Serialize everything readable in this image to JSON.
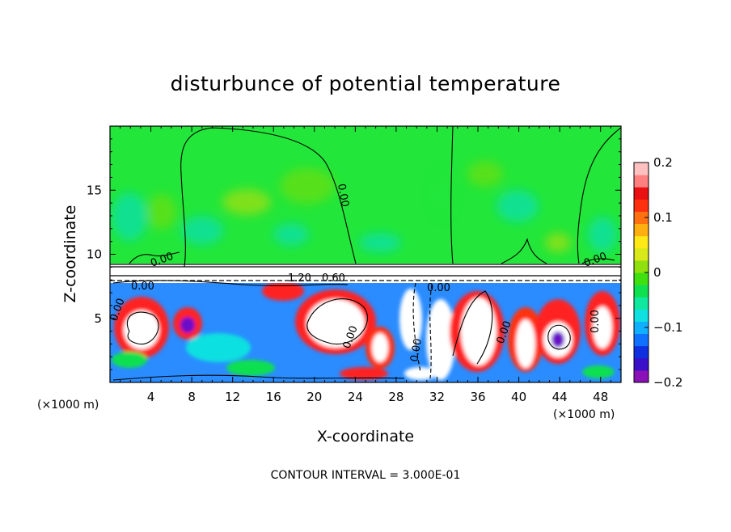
{
  "chart_data": {
    "type": "heatmap",
    "title": "disturbunce of potential temperature",
    "xlabel": "X-coordinate",
    "ylabel": "Z-coordinate",
    "x_unit_left": "(×1000 m)",
    "x_unit_right": "(×1000 m)",
    "footer": "CONTOUR INTERVAL = 3.000E-01",
    "xlim": [
      0,
      50
    ],
    "ylim": [
      0,
      20
    ],
    "x_ticks": [
      "4",
      "8",
      "12",
      "16",
      "20",
      "24",
      "28",
      "32",
      "36",
      "40",
      "44",
      "48"
    ],
    "y_ticks": [
      "5",
      "10",
      "15"
    ],
    "colorbar": {
      "range": [
        -0.2,
        0.2
      ],
      "ticks": [
        "0.2",
        "0.1",
        "0",
        "−0.1",
        "−0.2"
      ],
      "colors": [
        "#8a10b8",
        "#3a10c8",
        "#1030e0",
        "#1070ff",
        "#10b0ff",
        "#10e0e0",
        "#10e8a0",
        "#10e050",
        "#40e010",
        "#90e010",
        "#d8e818",
        "#ffe818",
        "#ffb010",
        "#ff7010",
        "#ff3010",
        "#e81010",
        "#ff8080",
        "#ffc0c0"
      ]
    },
    "contour_labels": [
      "0.00",
      "0.00",
      "0.00",
      "1.20",
      "0.60",
      "0.00",
      "0.00",
      "0.00",
      "0.00",
      "0.00",
      "0.00",
      "0.00"
    ]
  }
}
